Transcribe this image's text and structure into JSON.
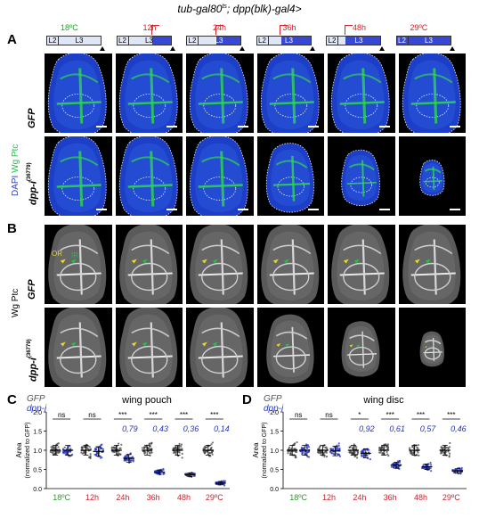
{
  "figure_title": "tub-gal80ts; dpp(blk)-gal4>",
  "title_sup": "ts",
  "panels": {
    "A": "A",
    "B": "B",
    "C": "C",
    "D": "D"
  },
  "timeline": {
    "stages": [
      "L2",
      "L3"
    ],
    "columns": [
      {
        "label": "18ºC",
        "label_color": "#2a9a2a",
        "shifted": false,
        "blue_fraction": 0.0
      },
      {
        "label": "12h",
        "label_color": "#d0202a",
        "shifted": true,
        "blue_fraction": 0.35
      },
      {
        "label": "24h",
        "label_color": "#d0202a",
        "shifted": true,
        "blue_fraction": 0.45
      },
      {
        "label": "36h",
        "label_color": "#d0202a",
        "shifted": true,
        "blue_fraction": 0.55
      },
      {
        "label": "48h",
        "label_color": "#d0202a",
        "shifted": true,
        "blue_fraction": 0.65
      },
      {
        "label": "29ºC",
        "label_color": "#d0202a",
        "shifted": false,
        "blue_fraction": 1.0
      }
    ]
  },
  "row_labels": {
    "gfp": "GFP",
    "dppi": "dpp-i",
    "dppi_sup": "(36779)"
  },
  "side_labels": {
    "a_dapi": "DAPI",
    "a_wg": "Wg",
    "a_ptc": "Ptc",
    "b_wg": "Wg",
    "b_ptc": "Ptc"
  },
  "annotations": {
    "or": "OR",
    "ir": "IR"
  },
  "colors": {
    "dapi": "#2840d0",
    "ptc_green": "#22c04a",
    "red": "#d0202a",
    "green_label": "#2a9a2a",
    "dpp_blue": "#2233bb"
  },
  "chart_data": [
    {
      "type": "scatter",
      "title": "wing pouch",
      "ylabel": "Area",
      "ylabel2": "(normalized to GFP)",
      "ylim": [
        0,
        2.0
      ],
      "yticks": [
        "0.0",
        "0.5",
        "1.0",
        "1.5",
        "2.0"
      ],
      "legend": [
        "GFP",
        "dpp-i"
      ],
      "categories": [
        "18ºC",
        "12h",
        "24h",
        "36h",
        "48h",
        "29ºC"
      ],
      "category_colors": [
        "#2a9a2a",
        "#d0202a",
        "#d0202a",
        "#d0202a",
        "#d0202a",
        "#d0202a"
      ],
      "series": [
        {
          "name": "GFP",
          "values": [
            1.0,
            1.0,
            1.0,
            1.0,
            1.0,
            1.0
          ]
        },
        {
          "name": "dpp-i",
          "values": [
            1.0,
            0.97,
            0.79,
            0.43,
            0.36,
            0.14
          ]
        }
      ],
      "ratio_labels": [
        "",
        "",
        "0,79",
        "0,43",
        "0,36",
        "0,14"
      ],
      "significance": [
        "ns",
        "ns",
        "***",
        "***",
        "***",
        "***"
      ]
    },
    {
      "type": "scatter",
      "title": "wing disc",
      "ylabel": "Area",
      "ylabel2": "(normalized to GFP)",
      "ylim": [
        0,
        2.0
      ],
      "yticks": [
        "0.0",
        "0.5",
        "1.0",
        "1.5",
        "2.0"
      ],
      "legend": [
        "GFP",
        "dpp-i"
      ],
      "categories": [
        "18ºC",
        "12h",
        "24h",
        "36h",
        "48h",
        "29ºC"
      ],
      "category_colors": [
        "#2a9a2a",
        "#d0202a",
        "#d0202a",
        "#d0202a",
        "#d0202a",
        "#d0202a"
      ],
      "series": [
        {
          "name": "GFP",
          "values": [
            1.0,
            1.0,
            1.0,
            1.0,
            1.0,
            1.0
          ]
        },
        {
          "name": "dpp-i",
          "values": [
            1.0,
            0.98,
            0.92,
            0.61,
            0.57,
            0.46
          ]
        }
      ],
      "ratio_labels": [
        "",
        "",
        "0,92",
        "0,61",
        "0,57",
        "0,46"
      ],
      "significance": [
        "ns",
        "ns",
        "*",
        "***",
        "***",
        "***"
      ]
    }
  ]
}
